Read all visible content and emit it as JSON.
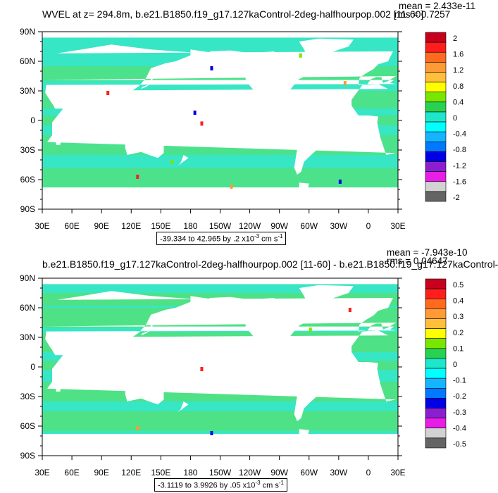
{
  "chart_data": [
    {
      "type": "heatmap",
      "title": "WVEL at z= 294.8m, b.e21.B1850.f19_g17.127kaControl-2deg-halfhourpop.002 [11-60]",
      "stats": {
        "mean": "mean = 2.433e-11",
        "rms": "rms = 0.7257"
      },
      "x_ticks": [
        "30E",
        "60E",
        "90E",
        "120E",
        "150E",
        "180",
        "150W",
        "120W",
        "90W",
        "60W",
        "30W",
        "0",
        "30E"
      ],
      "y_ticks": [
        "90N",
        "60N",
        "30N",
        "0",
        "30S",
        "60S",
        "90S"
      ],
      "colorbar": {
        "labels": [
          "2",
          "1.6",
          "1.2",
          "0.8",
          "0.4",
          "0",
          "-0.4",
          "-0.8",
          "-1.2",
          "-1.6",
          "-2"
        ],
        "levels": [
          2,
          1.6,
          1.2,
          0.8,
          0.4,
          0,
          -0.4,
          -0.8,
          -1.2,
          -1.6,
          -2
        ]
      },
      "range_text": "-39.334 to 42.965 by .2 x10",
      "range_exp": "-3",
      "range_units": "cm s",
      "range_units_exp": "-1",
      "ocean_color": "#37e6c4",
      "accent_color": "#5ede5e"
    },
    {
      "type": "heatmap",
      "title": "b.e21.B1850.f19_g17.127kaControl-2deg-halfhourpop.002 [11-60] - b.e21.B1850.f19_g17.127kaControl-",
      "stats": {
        "mean": "mean = -7.943e-10",
        "rms": "rms = 0.04647"
      },
      "x_ticks": [
        "30E",
        "60E",
        "90E",
        "120E",
        "150E",
        "180",
        "150W",
        "120W",
        "90W",
        "60W",
        "30W",
        "0",
        "30E"
      ],
      "y_ticks": [
        "90N",
        "60N",
        "30N",
        "0",
        "30S",
        "60S",
        "90S"
      ],
      "colorbar": {
        "labels": [
          "0.5",
          "0.4",
          "0.3",
          "0.2",
          "0.1",
          "0",
          "-0.1",
          "-0.2",
          "-0.3",
          "-0.4",
          "-0.5"
        ],
        "levels": [
          0.5,
          0.4,
          0.3,
          0.2,
          0.1,
          0,
          -0.1,
          -0.2,
          -0.3,
          -0.4,
          -0.5
        ]
      },
      "range_text": "-3.1119 to 3.9926 by .05 x10",
      "range_exp": "-3",
      "range_units": "cm s",
      "range_units_exp": "-1",
      "ocean_color": "#37e6c4",
      "accent_color": "#5ede5e"
    }
  ],
  "colors": {
    "palette": [
      "#c8001e",
      "#ff1e1e",
      "#ff6a1e",
      "#ff9a36",
      "#ffbe3c",
      "#ffff00",
      "#78e600",
      "#28d250",
      "#1ee6c8",
      "#00ffff",
      "#14b4ff",
      "#0078ff",
      "#0000e6",
      "#8c1ed2",
      "#e61ee6",
      "#d2d2d2",
      "#646464"
    ],
    "land": "#ffffff"
  }
}
